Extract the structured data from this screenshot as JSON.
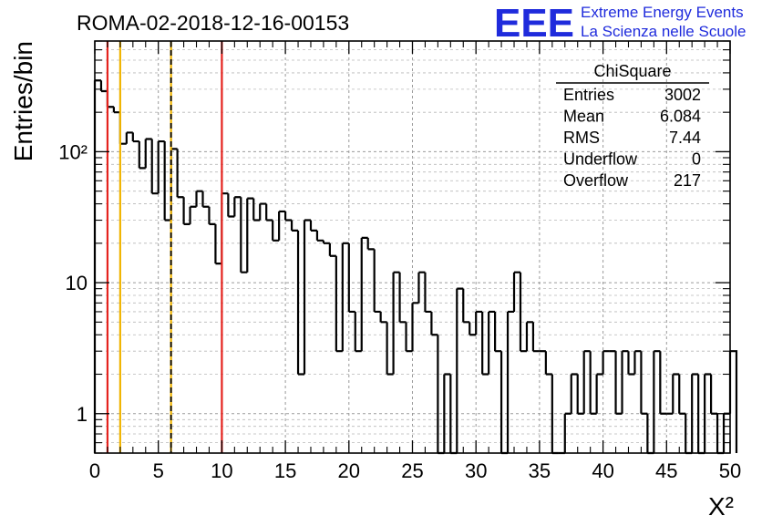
{
  "chart_data": {
    "type": "bar",
    "title": "ROMA-02-2018-12-16-00153",
    "xlabel": "X²",
    "ylabel": "Entries/bin",
    "xlim": [
      0,
      50
    ],
    "ylim": [
      0.5,
      700
    ],
    "yscale": "log",
    "bin_width": 0.5,
    "grid": true,
    "x_ticks": [
      "0",
      "5",
      "10",
      "15",
      "20",
      "25",
      "30",
      "35",
      "40",
      "45",
      "50"
    ],
    "y_ticks": [
      "1",
      "10",
      "10²"
    ],
    "counts": [
      350,
      290,
      220,
      200,
      115,
      140,
      120,
      75,
      125,
      48,
      120,
      30,
      105,
      45,
      28,
      38,
      50,
      38,
      28,
      14,
      48,
      32,
      45,
      12,
      44,
      30,
      40,
      30,
      21,
      35,
      30,
      25,
      2,
      30,
      25,
      21,
      20,
      16,
      3,
      20,
      6,
      3,
      22,
      18,
      6,
      5,
      2,
      12,
      5,
      3,
      7,
      12,
      6,
      4,
      0.5,
      2,
      0.5,
      9,
      5,
      4,
      6,
      2,
      6,
      3,
      0.5,
      6,
      12,
      3,
      5,
      3,
      3,
      2,
      0.5,
      0.5,
      1,
      2,
      1,
      3,
      1,
      2,
      3,
      3,
      1,
      3,
      2,
      3,
      1,
      0.5,
      3,
      1,
      1,
      2,
      1,
      0.5,
      2,
      0.5,
      2,
      1,
      0.5,
      1,
      3
    ],
    "vertical_lines": [
      {
        "x": 1,
        "color": "#e5231e",
        "style": "solid"
      },
      {
        "x": 2,
        "color": "#f0b400",
        "style": "solid"
      },
      {
        "x": 6,
        "color": "#f0b400",
        "style": "solid"
      },
      {
        "x": 6,
        "color": "#000000",
        "style": "dashed"
      },
      {
        "x": 10,
        "color": "#e5231e",
        "style": "solid"
      }
    ],
    "line_color": "#000000",
    "stats": {
      "title": "ChiSquare",
      "rows": [
        {
          "label": "Entries",
          "value": "3002"
        },
        {
          "label": "Mean",
          "value": "6.084"
        },
        {
          "label": "RMS",
          "value": "7.44"
        },
        {
          "label": "Underflow",
          "value": "0"
        },
        {
          "label": "Overflow",
          "value": "217"
        }
      ]
    }
  },
  "logo": {
    "mark": "EEE",
    "line1": "Extreme Energy Events",
    "line2": "La Scienza nelle Scuole",
    "color": "#1f2bdc"
  }
}
